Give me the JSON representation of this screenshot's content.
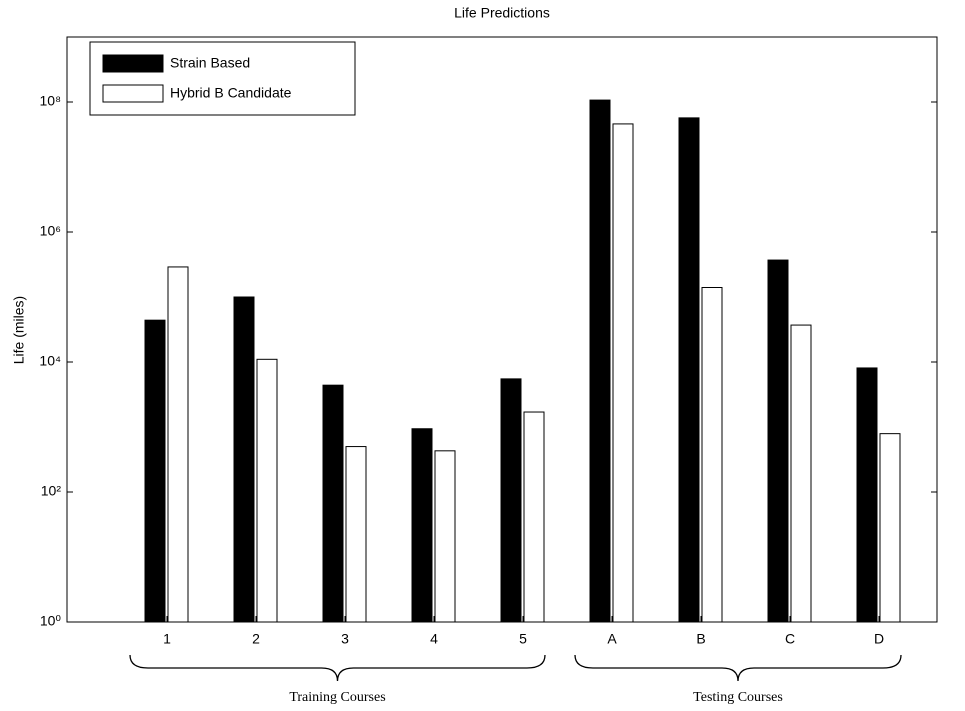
{
  "chart_data": {
    "type": "bar",
    "title": "Life Predictions",
    "y_label": "Life (miles)",
    "categories": [
      "1",
      "2",
      "3",
      "4",
      "5",
      "A",
      "B",
      "C",
      "D"
    ],
    "series": [
      {
        "name": "Strain Based",
        "color": "#000000",
        "values": [
          44000,
          100000,
          4400,
          940,
          5500,
          107000000,
          57000000,
          370000,
          8100
        ]
      },
      {
        "name": "Hybrid B Candidate",
        "color": "#ffffff",
        "values": [
          290000,
          11000,
          500,
          430,
          1700,
          46000000,
          140000,
          37000,
          790
        ]
      }
    ],
    "ylim": [
      1,
      1000000000
    ],
    "y_scale": "log",
    "yticks": [
      {
        "value": 1,
        "label": "10⁰"
      },
      {
        "value": 100,
        "label": "10²"
      },
      {
        "value": 10000,
        "label": "10⁴"
      },
      {
        "value": 1000000,
        "label": "10⁶"
      },
      {
        "value": 100000000,
        "label": "10⁸"
      }
    ],
    "legend": "upper left",
    "annotations": [
      "Training Courses",
      "Testing Courses"
    ]
  }
}
